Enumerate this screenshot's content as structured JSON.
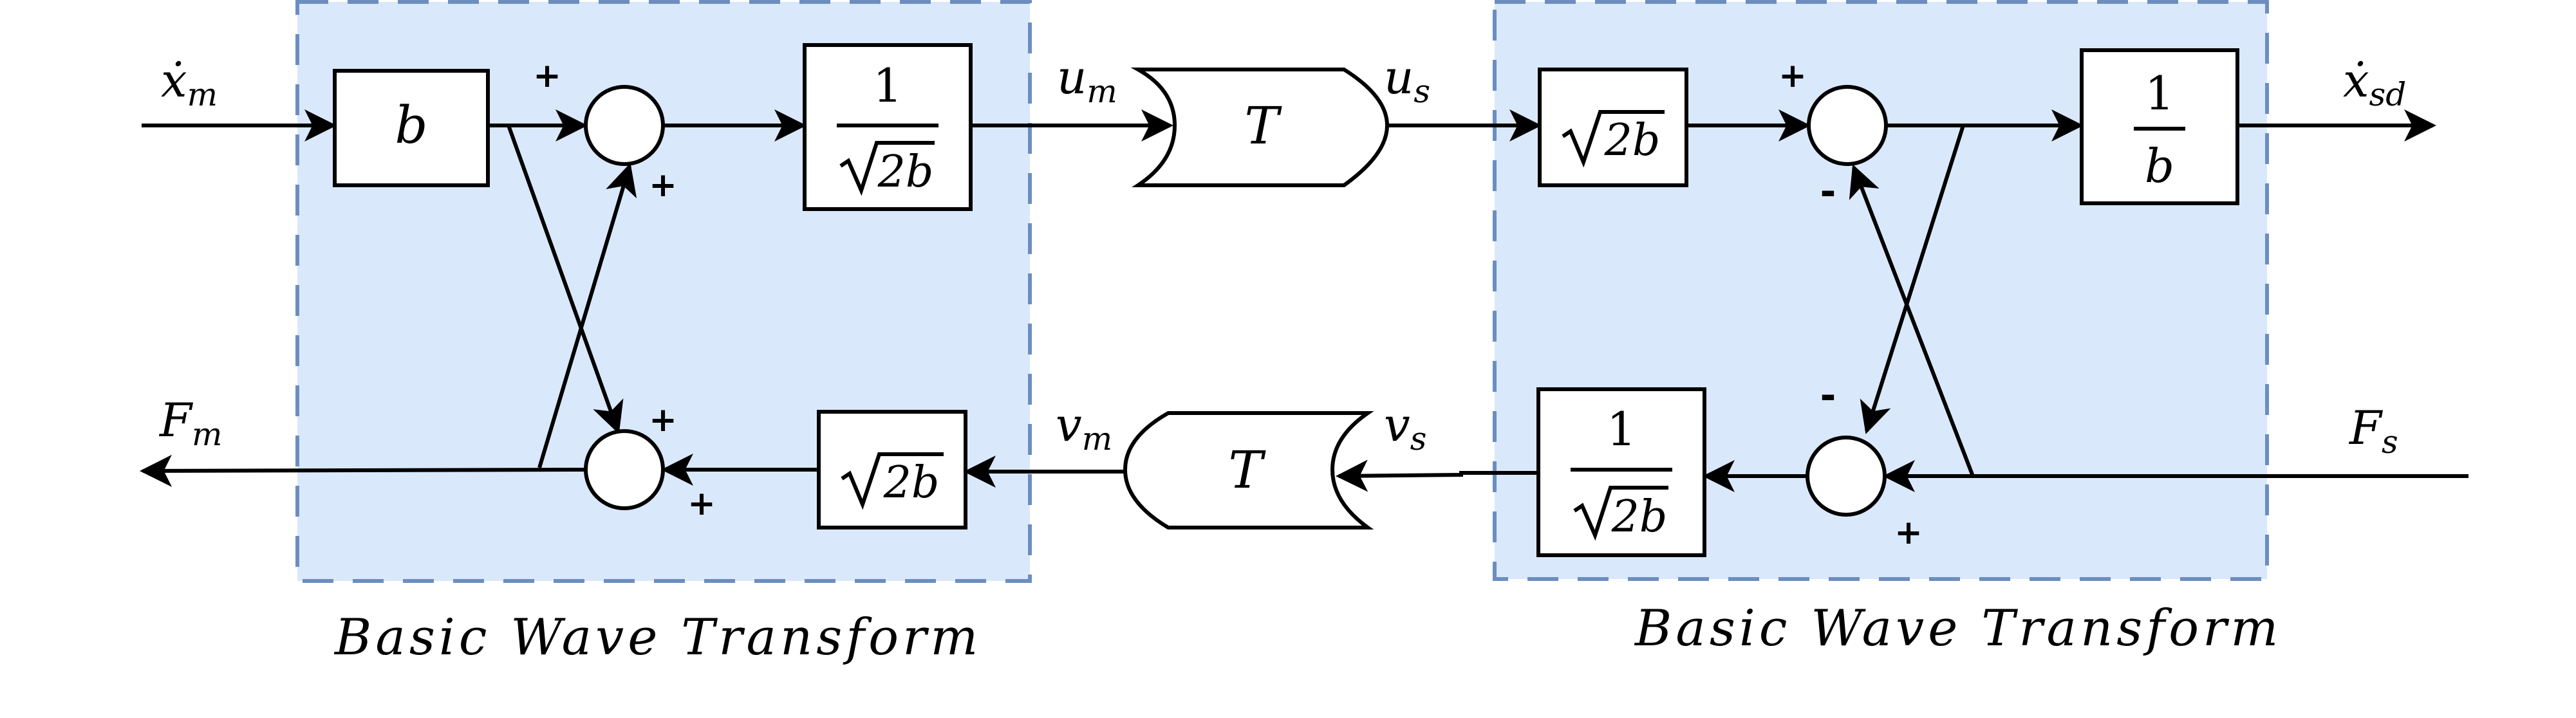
{
  "left_block": {
    "caption": "Basic Wave Transform",
    "gain_b": "b",
    "gain_frac_num": "1",
    "gain_frac_rad": "2b",
    "gain_sqrt_rad": "2b",
    "sum_top_sign_top": "+",
    "sum_top_sign_bottom": "+",
    "sum_bottom_sign_top": "+",
    "sum_bottom_sign_bottom": "+"
  },
  "right_block": {
    "caption": "Basic Wave Transform",
    "gain_sqrt_rad": "2b",
    "gain_inv_num": "1",
    "gain_inv_den": "b",
    "gain_frac_num": "1",
    "gain_frac_rad": "2b",
    "sum_top_sign_top": "+",
    "sum_top_sign_bottom": "-",
    "sum_bottom_sign_top": "-",
    "sum_bottom_sign_bottom": "+"
  },
  "delays": {
    "top_label": "T",
    "bottom_label": "T"
  },
  "signals": {
    "xm_dot": "ẋ",
    "xm_sub": "m",
    "fm": "F",
    "fm_sub": "m",
    "um": "u",
    "um_sub": "m",
    "us": "u",
    "us_sub": "s",
    "vm": "v",
    "vm_sub": "m",
    "vs": "v",
    "vs_sub": "s",
    "xsd_dot": "ẋ",
    "xsd_sub": "sd",
    "fs": "F",
    "fs_sub": "s"
  },
  "colors": {
    "region_fill": "#dae8fc",
    "region_border": "#6c8ebf",
    "line": "#000000"
  }
}
